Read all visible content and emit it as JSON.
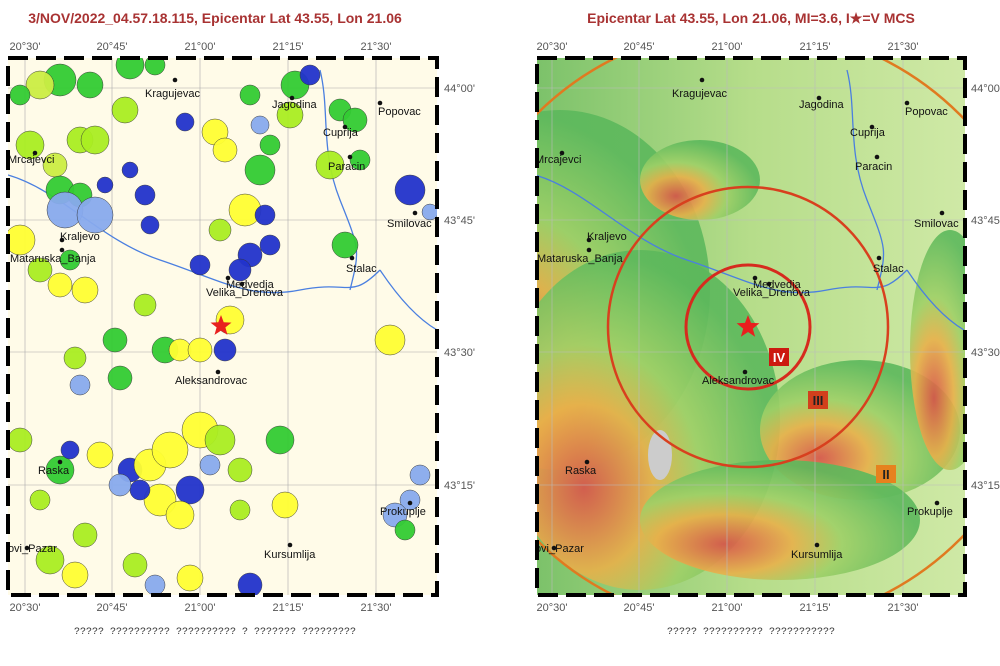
{
  "maps": [
    {
      "title": "3/NOV/2022_04.57.18.115, Epicentar Lat 43.55, Lon 21.06",
      "lon_labels": [
        "20°30'",
        "20°45'",
        "21°00'",
        "21°15'",
        "21°30'"
      ],
      "lat_labels": [
        "44°00'",
        "43°45'",
        "43°30'",
        "43°15'"
      ],
      "cities": [
        "Kragujevac",
        "Jagodina",
        "Popovac",
        "Cuprija",
        "Paracin",
        "Mrcajevci",
        "Smilovac",
        "Kraljevo",
        "Mataruska_Banja",
        "Medvedja",
        "Velika_Drenova",
        "Stalac",
        "Aleksandrovac",
        "Raska",
        "Prokuplje",
        "Novi_Pazar",
        "Kursumlija"
      ],
      "caption": "????? ?????????? ?????????? ? ??????? ?????????"
    },
    {
      "title": "Epicentar Lat 43.55, Lon 21.06, MI=3.6, I★=V MCS",
      "lon_labels": [
        "20°30'",
        "20°45'",
        "21°00'",
        "21°15'",
        "21°30'"
      ],
      "lat_labels": [
        "44°00'",
        "43°45'",
        "43°30'",
        "43°15'"
      ],
      "cities": [
        "Kragujevac",
        "Jagodina",
        "Popovac",
        "Cuprija",
        "Paracin",
        "Mrcajevci",
        "Smilovac",
        "Kraljevo",
        "Mataruska_Banja",
        "Medvedja",
        "Velika_Drenova",
        "Stalac",
        "Aleksandrovac",
        "Raska",
        "Prokuplje",
        "Novi_Pazar",
        "Kursumlija"
      ],
      "intensity_labels": [
        "IV",
        "III",
        "II"
      ],
      "caption": "????? ?????????? ???????????"
    }
  ]
}
